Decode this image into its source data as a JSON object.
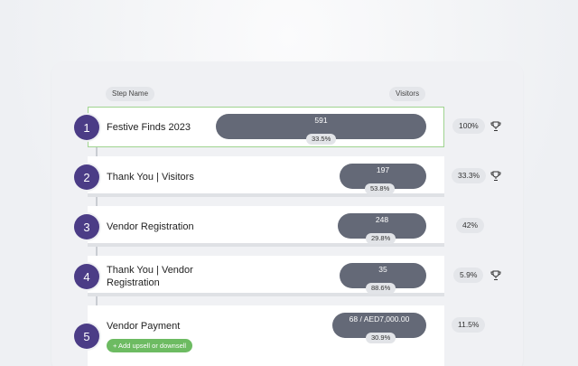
{
  "headers": {
    "step_name": "Step Name",
    "visitors": "Visitors"
  },
  "steps": [
    {
      "number": "1",
      "name": "Festive Finds 2023",
      "visitors": "591",
      "bar_pct": "33.5%",
      "conversion": "100%",
      "trophy": true,
      "selected": true
    },
    {
      "number": "2",
      "name": "Thank You | Visitors",
      "visitors": "197",
      "bar_pct": "53.8%",
      "conversion": "33.3%",
      "trophy": true
    },
    {
      "number": "3",
      "name": "Vendor Registration",
      "visitors": "248",
      "bar_pct": "29.8%",
      "conversion": "42%",
      "trophy": false
    },
    {
      "number": "4",
      "name_line1": "Thank You | Vendor",
      "name_line2": "Registration",
      "visitors": "35",
      "bar_pct": "88.6%",
      "conversion": "5.9%",
      "trophy": true
    },
    {
      "number": "5",
      "name": "Vendor Payment",
      "visitors": "68 / AED7,000.00",
      "bar_pct": "30.9%",
      "conversion": "11.5%",
      "trophy": false
    }
  ],
  "add_upsell_label": "+ Add upsell or downsell",
  "colors": {
    "step_circle": "#4b3c86",
    "bar": "#646977",
    "selected_border": "#9fd38f",
    "add_button": "#6dbb62"
  },
  "icons": {
    "trophy": "trophy-icon",
    "plus": "plus-icon"
  }
}
